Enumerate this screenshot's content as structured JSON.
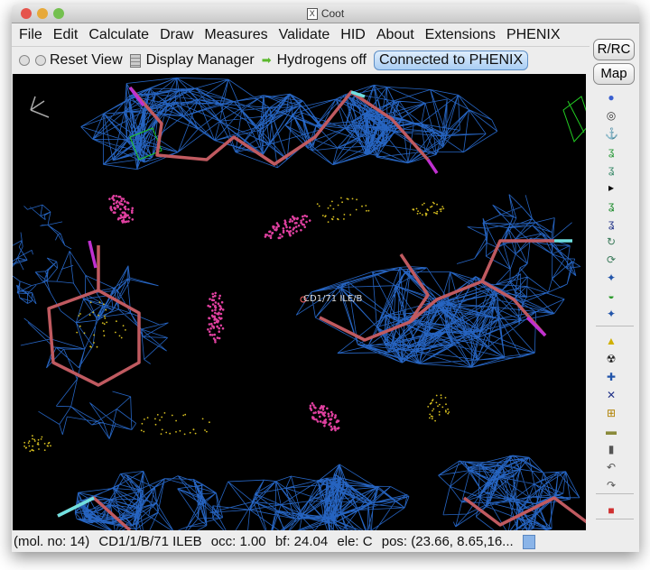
{
  "window": {
    "title": "Coot"
  },
  "menu": [
    "File",
    "Edit",
    "Calculate",
    "Draw",
    "Measures",
    "Validate",
    "HID",
    "About",
    "Extensions",
    "PHENIX"
  ],
  "toolbar": {
    "reset_view": "Reset View",
    "display_manager": "Display Manager",
    "hydrogens": "Hydrogens off",
    "phenix": "Connected to PHENIX"
  },
  "side": {
    "rrc": "R/RC",
    "map": "Map"
  },
  "viewport": {
    "atom_label": "CD1/71 ILE/B"
  },
  "status": {
    "mol": "(mol. no: 14)",
    "atom": "CD1/1/B/71 ILEB",
    "occ": "occ:  1.00",
    "bf": "bf: 24.04",
    "ele": "ele:  C",
    "pos": "pos: (23.66, 8.65,16..."
  },
  "colors": {
    "background": "#000000",
    "density_map": "#2a6fd6",
    "difference_map": "#22cc22",
    "carbon_bonds": "#c05a60",
    "clash_dots": "#e040a0",
    "phenix_button": "#a9cdf3"
  },
  "side_icons": [
    "sphere-refine-icon",
    "pepflip-icon",
    "rotamer-icon",
    "real-space-refine-icon",
    "regularize-icon",
    "more-icon",
    "auto-fit-rotamer-icon",
    "edit-chi-icon",
    "rotate-translate-icon",
    "rigid-body-icon",
    "torsion-icon",
    "add-water-icon",
    "backrub-icon",
    "add-terminal-icon",
    "delete-icon",
    "add-atom-icon",
    "add-residue-icon",
    "plus-box-icon",
    "accept-icon",
    "trash-icon",
    "undo-icon",
    "redo-icon",
    "flag-icon"
  ]
}
